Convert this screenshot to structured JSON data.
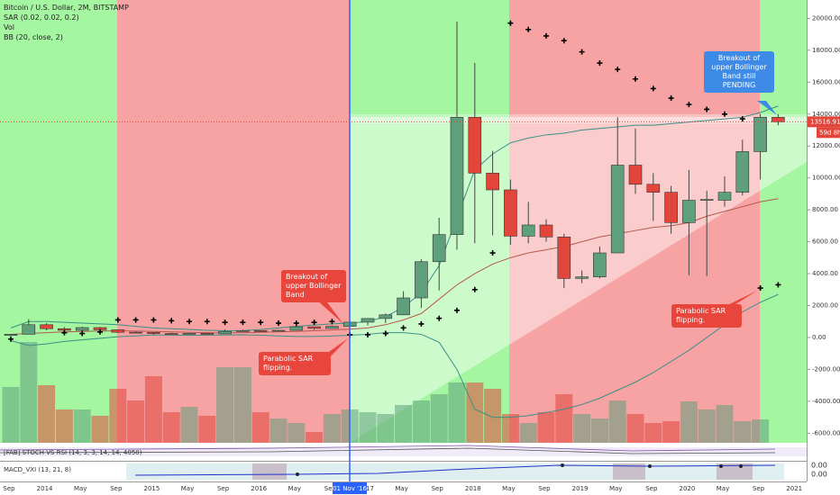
{
  "legend": {
    "symbol": "Bitcoin / U.S. Dollar, 2M, BITSTAMP",
    "sar": "SAR (0.02, 0.02, 0.2)",
    "vol": "Vol",
    "bb": "BB (20, close, 2)"
  },
  "panes": {
    "stoch": "[FAB] STOCH VS RSI (14, 3, 3, 14, 14, 4050)",
    "macd": "MACD_VXI (13, 21, 8)",
    "macd_ticks": [
      "0.00",
      "0.00"
    ]
  },
  "annotations": {
    "breakout": "Breakout of upper Bollinger Band",
    "sar_flip_1": "Parabolic SAR flipping.",
    "sar_flip_2": "Parabolic SAR flipping.",
    "pending": "Breakout of upper Bollinger Band still PENDING"
  },
  "chart_data": {
    "type": "candlestick",
    "up_color": "#5e9f7c",
    "down_color": "#e2463b",
    "open": [
      130,
      200,
      800,
      550,
      450,
      620,
      480,
      330,
      315,
      250,
      240,
      260,
      230,
      380,
      430,
      420,
      450,
      670,
      570,
      700,
      960,
      1190,
      1420,
      2480,
      4750,
      6450,
      13800,
      10300,
      9250,
      6350,
      7050,
      6300,
      3700,
      3800,
      5300,
      10800,
      9600,
      9100,
      7200,
      8600,
      8600,
      9100,
      11650,
      13800
    ],
    "high": [
      200,
      1150,
      900,
      650,
      680,
      660,
      500,
      400,
      320,
      300,
      260,
      300,
      500,
      500,
      440,
      460,
      780,
      680,
      740,
      980,
      1200,
      1500,
      2900,
      4900,
      7500,
      19800,
      17200,
      11700,
      9900,
      8500,
      7400,
      6500,
      4200,
      5700,
      13800,
      13100,
      10300,
      9500,
      10500,
      9200,
      10100,
      12400,
      14000,
      14000
    ],
    "low": [
      120,
      200,
      450,
      350,
      420,
      440,
      280,
      300,
      170,
      220,
      220,
      200,
      220,
      350,
      360,
      400,
      440,
      480,
      590,
      700,
      750,
      900,
      1400,
      1850,
      2950,
      5500,
      5900,
      6400,
      5800,
      5900,
      6000,
      3100,
      3400,
      3700,
      5300,
      9000,
      7300,
      6500,
      3900,
      3850,
      8200,
      8900,
      9900,
      13300
    ],
    "close": [
      200,
      800,
      550,
      450,
      620,
      480,
      330,
      315,
      250,
      240,
      260,
      230,
      380,
      430,
      420,
      450,
      670,
      570,
      700,
      960,
      1190,
      1420,
      2480,
      4750,
      6450,
      13800,
      10300,
      9250,
      6350,
      7050,
      6300,
      3700,
      3800,
      5300,
      10800,
      9600,
      9100,
      7200,
      8600,
      8650,
      9100,
      11650,
      13800,
      13516.91
    ],
    "volume": [
      62,
      112,
      64,
      37,
      37,
      30,
      60,
      47,
      74,
      34,
      40,
      30,
      84,
      84,
      34,
      27,
      22,
      12,
      32,
      37,
      34,
      32,
      42,
      47,
      54,
      67,
      67,
      60,
      32,
      22,
      34,
      54,
      32,
      27,
      47,
      32,
      22,
      24,
      46,
      37,
      42,
      24,
      26,
      null
    ],
    "sar": {
      "name": "SAR (0.02, 0.02, 0.2)",
      "color": "#000000",
      "values": [
        -100,
        null,
        null,
        300,
        250,
        350,
        1100,
        1100,
        1100,
        1050,
        1000,
        1000,
        950,
        950,
        950,
        900,
        900,
        950,
        1000,
        170,
        170,
        250,
        600,
        850,
        1200,
        1700,
        3000,
        5300,
        19700,
        19300,
        18900,
        18600,
        17900,
        17200,
        16800,
        16200,
        15600,
        15000,
        14600,
        14300,
        14000,
        13700,
        3100,
        3300
      ]
    },
    "bollinger": {
      "basis": {
        "color": "#b55a4f",
        "values": [
          200,
          250,
          300,
          350,
          380,
          400,
          420,
          400,
          380,
          350,
          320,
          300,
          290,
          300,
          320,
          350,
          380,
          420,
          470,
          520,
          600,
          800,
          1100,
          1500,
          2400,
          3300,
          4000,
          4600,
          5000,
          5300,
          5500,
          5700,
          6000,
          6300,
          6500,
          6700,
          6900,
          7000,
          7200,
          7600,
          7900,
          8200,
          8500,
          8700
        ]
      },
      "upper": {
        "color": "#3a8f87",
        "values": [
          600,
          1000,
          1000,
          950,
          900,
          850,
          800,
          700,
          600,
          550,
          500,
          450,
          420,
          430,
          500,
          600,
          700,
          780,
          850,
          900,
          1000,
          1300,
          1900,
          2800,
          4500,
          7500,
          10500,
          11500,
          12200,
          12500,
          12700,
          12800,
          13000,
          13100,
          13200,
          13300,
          13300,
          13400,
          13500,
          13600,
          13700,
          13800,
          14100,
          14500
        ]
      },
      "lower": {
        "color": "#3a8f87",
        "values": [
          -200,
          -500,
          -400,
          -250,
          -150,
          -50,
          50,
          100,
          160,
          150,
          140,
          150,
          160,
          170,
          140,
          100,
          60,
          60,
          90,
          140,
          200,
          300,
          300,
          200,
          -300,
          -2000,
          -4500,
          -5000,
          -5000,
          -4900,
          -4700,
          -4500,
          -4200,
          -3800,
          -3300,
          -2800,
          -2200,
          -1500,
          -800,
          0,
          800,
          1600,
          2200,
          2700
        ]
      }
    },
    "ylim": [
      -6600,
      21150
    ],
    "yticks": [
      {
        "value": 20000,
        "label": "20000.00"
      },
      {
        "value": 18000,
        "label": "18000.00"
      },
      {
        "value": 16000,
        "label": "16000.00"
      },
      {
        "value": 14000,
        "label": "14000.00"
      },
      {
        "value": 12000,
        "label": "12000.00"
      },
      {
        "value": 10000,
        "label": "10000.00"
      },
      {
        "value": 8000,
        "label": "8000.00"
      },
      {
        "value": 6000,
        "label": "6000.00"
      },
      {
        "value": 4000,
        "label": "4000.00"
      },
      {
        "value": 2000,
        "label": "2000.00"
      },
      {
        "value": 0,
        "label": "0.00"
      },
      {
        "value": -2000,
        "label": "-2000.00"
      },
      {
        "value": -4000,
        "label": "-4000.00"
      },
      {
        "value": -6000,
        "label": "-6000.00"
      }
    ],
    "last_price": 13516.91,
    "countdown": "59d 8h",
    "time_labels": [
      "Sep",
      "2014",
      "May",
      "Sep",
      "2015",
      "May",
      "Sep",
      "2016",
      "May",
      "Sep",
      "2017",
      "May",
      "Sep",
      "2018",
      "May",
      "Sep",
      "2019",
      "May",
      "Sep",
      "2020",
      "May",
      "Sep",
      "2021"
    ],
    "crosshair_label": "01 Nov '16"
  }
}
